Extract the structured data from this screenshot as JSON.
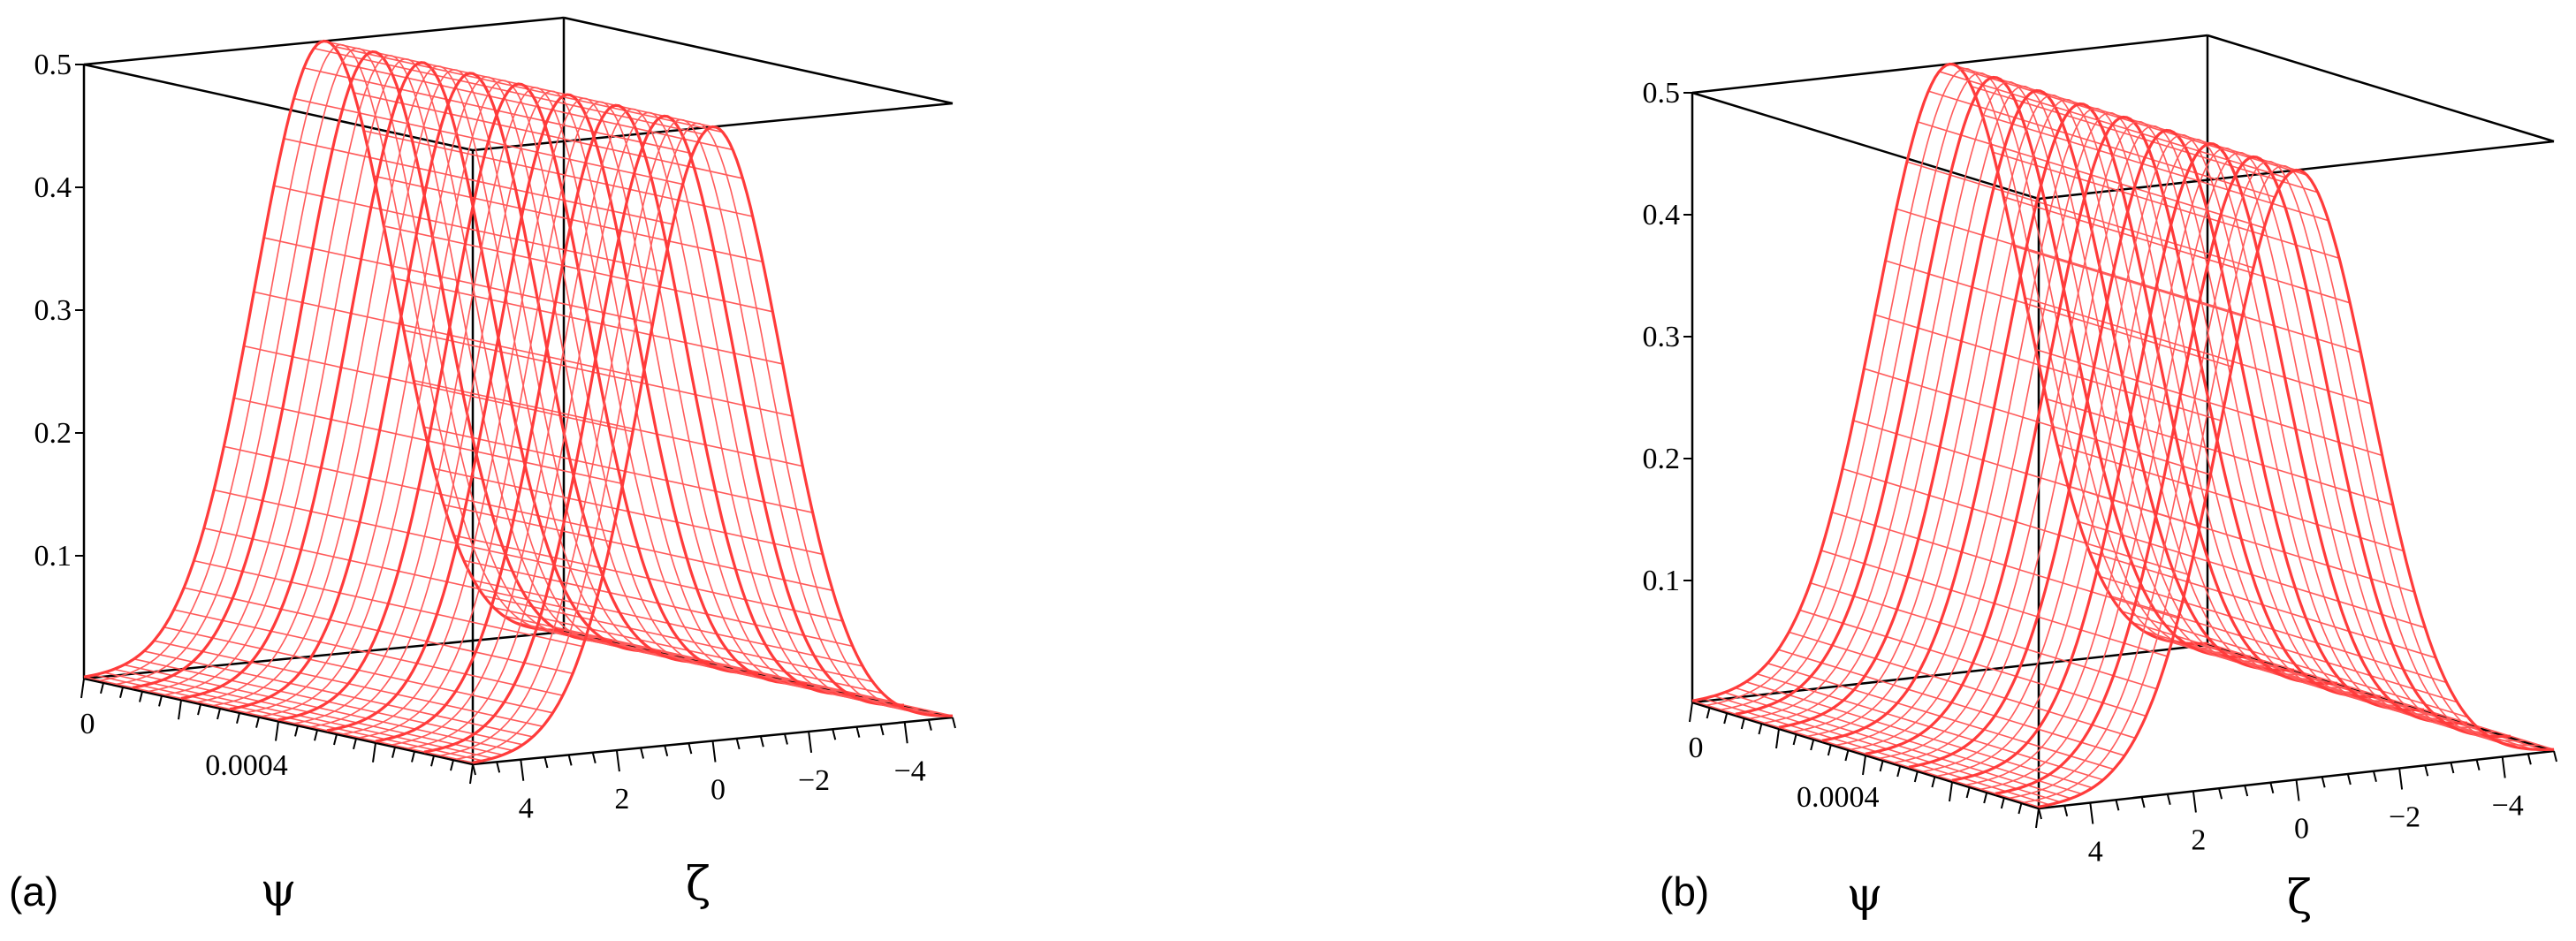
{
  "chart_data": [
    {
      "type": "surface",
      "panel_label": "(a)",
      "xlabel": "ψ",
      "ylabel": "ζ",
      "zlabel": "",
      "xlim": [
        0,
        0.001
      ],
      "ylim": [
        -5,
        5
      ],
      "zlim": [
        0,
        0.5
      ],
      "x_tick_labels": [
        "0",
        "0.0004"
      ],
      "y_tick_labels": [
        "4",
        "2",
        "0",
        "−2",
        "−4"
      ],
      "z_tick_labels": [
        "0.1",
        "0.2",
        "0.3",
        "0.4",
        "0.5"
      ],
      "z_ticks": [
        0.1,
        0.2,
        0.3,
        0.4,
        0.5
      ],
      "surface_peak": 0.5,
      "surface_peak_at_zeta": 0,
      "color": "#ff5a5a"
    },
    {
      "type": "surface",
      "panel_label": "(b)",
      "xlabel": "ψ",
      "ylabel": "ζ",
      "zlabel": "",
      "xlim": [
        0,
        0.001
      ],
      "ylim": [
        -5,
        5
      ],
      "zlim": [
        0,
        0.5
      ],
      "x_tick_labels": [
        "0",
        "0.0004"
      ],
      "y_tick_labels": [
        "4",
        "2",
        "0",
        "−2",
        "−4"
      ],
      "z_tick_labels": [
        "0.1",
        "0.2",
        "0.3",
        "0.4",
        "0.5"
      ],
      "z_ticks": [
        0.1,
        0.2,
        0.3,
        0.4,
        0.5
      ],
      "surface_peak": 0.5,
      "surface_peak_at_zeta": 0,
      "color": "#ff5a5a"
    }
  ]
}
